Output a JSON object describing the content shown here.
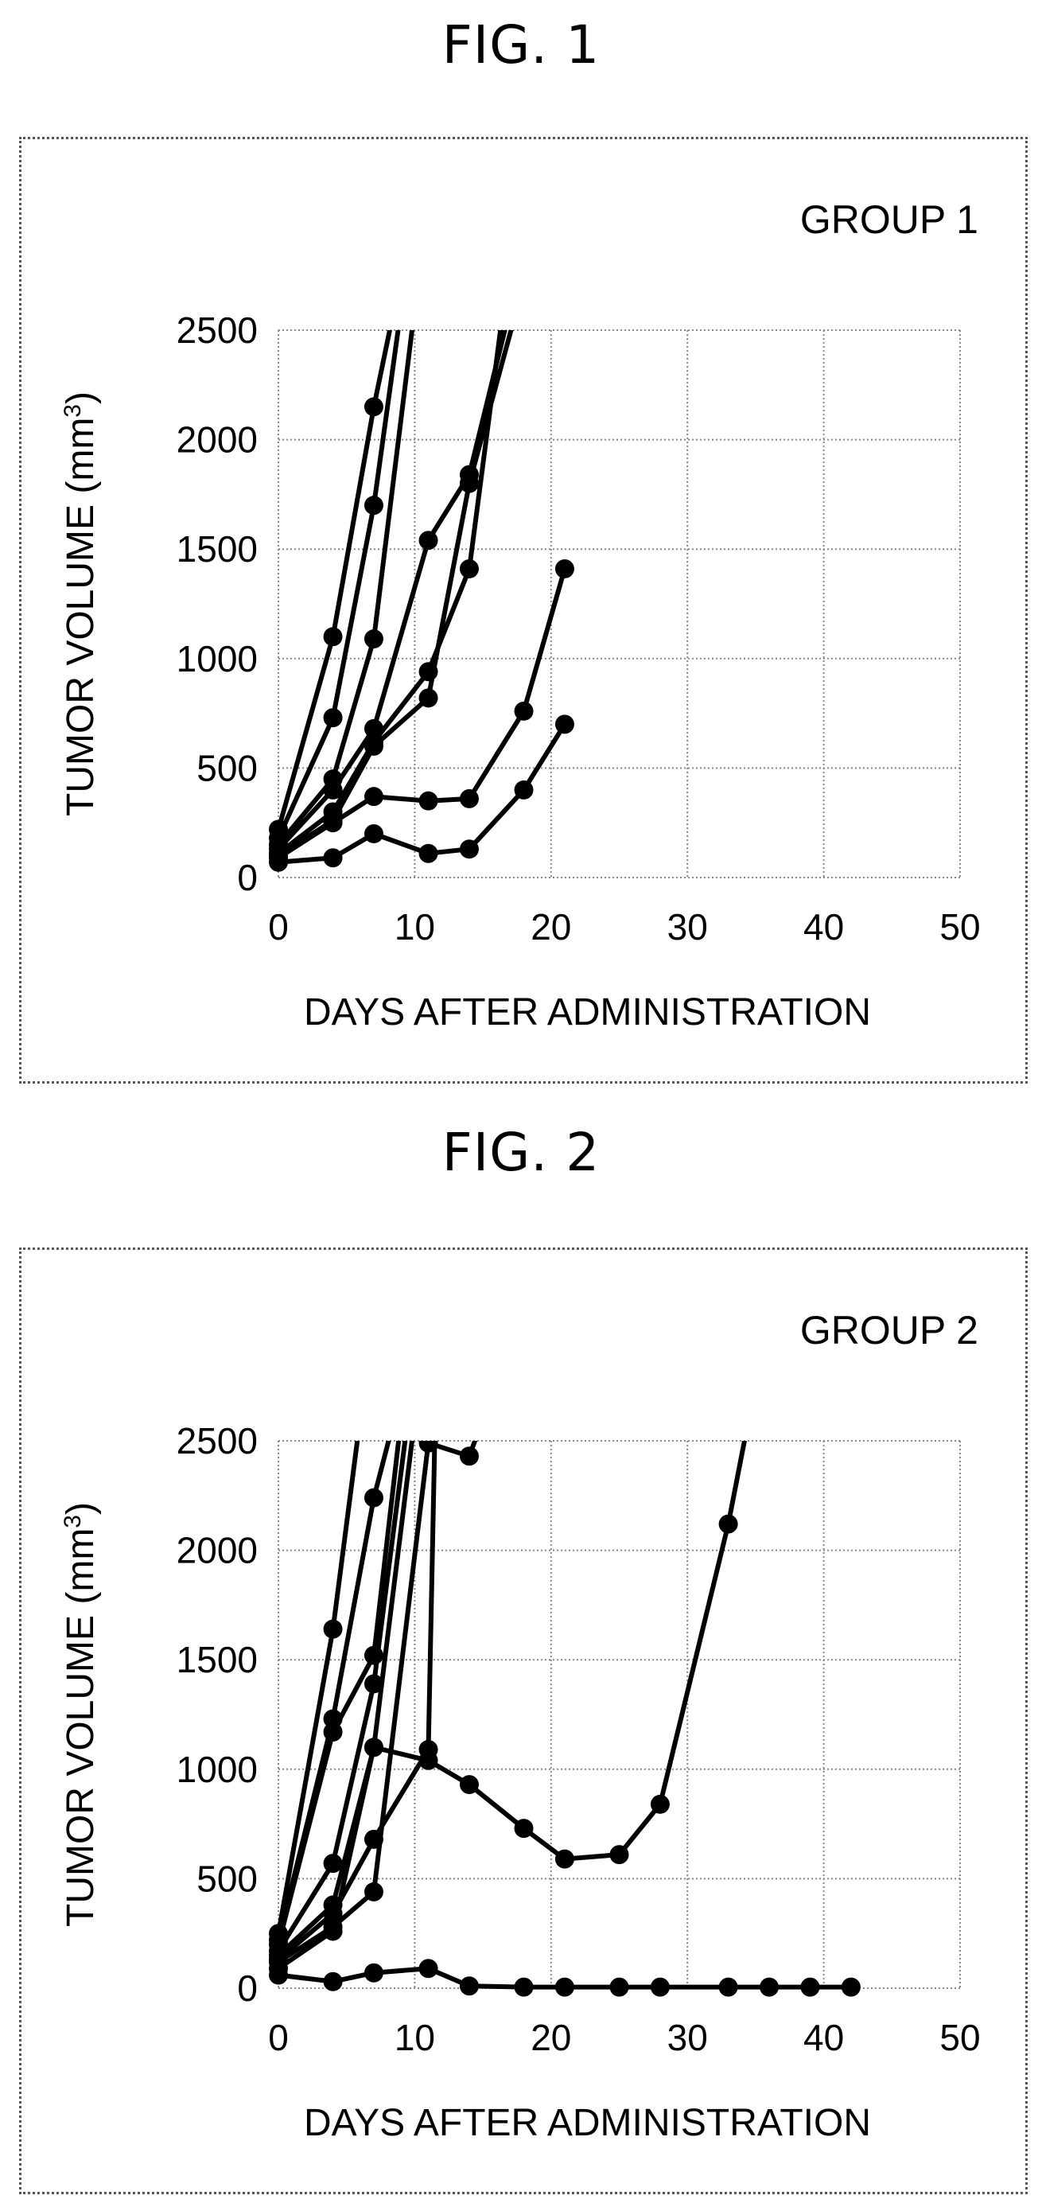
{
  "figures": [
    {
      "title": "FIG. 1"
    },
    {
      "title": "FIG. 2"
    }
  ],
  "chart_data": [
    {
      "type": "line",
      "title": "GROUP 1",
      "xlabel": "DAYS AFTER ADMINISTRATION",
      "ylabel": "TUMOR VOLUME (mm",
      "ylabel_sup": "3",
      "ylabel_close": ")",
      "xlim": [
        0,
        50
      ],
      "ylim": [
        0,
        2500
      ],
      "xticks": [
        0,
        10,
        20,
        30,
        40,
        50
      ],
      "yticks": [
        0,
        500,
        1000,
        1500,
        2000,
        2500
      ],
      "grid": true,
      "series": [
        {
          "x": [
            0,
            4,
            7,
            8.5
          ],
          "y": [
            220,
            1100,
            2150,
            2600
          ]
        },
        {
          "x": [
            0,
            4,
            7,
            9
          ],
          "y": [
            180,
            730,
            1700,
            2600
          ]
        },
        {
          "x": [
            0,
            4,
            7,
            10
          ],
          "y": [
            150,
            450,
            1090,
            2600
          ]
        },
        {
          "x": [
            0,
            4,
            7,
            11,
            14,
            17
          ],
          "y": [
            130,
            400,
            680,
            1540,
            1840,
            2600
          ]
        },
        {
          "x": [
            0,
            4,
            7,
            11,
            14,
            16.5
          ],
          "y": [
            110,
            300,
            620,
            940,
            1410,
            2600
          ]
        },
        {
          "x": [
            0,
            4,
            7,
            11,
            14,
            17.5
          ],
          "y": [
            100,
            260,
            600,
            820,
            1800,
            2600
          ]
        },
        {
          "x": [
            0,
            4,
            7,
            11,
            14,
            18,
            21
          ],
          "y": [
            90,
            250,
            370,
            350,
            360,
            760,
            1410
          ]
        },
        {
          "x": [
            0,
            4,
            7,
            11,
            14,
            18,
            21
          ],
          "y": [
            70,
            90,
            200,
            110,
            130,
            400,
            700
          ]
        }
      ]
    },
    {
      "type": "line",
      "title": "GROUP 2",
      "xlabel": "DAYS AFTER ADMINISTRATION",
      "ylabel": "TUMOR VOLUME (mm",
      "ylabel_sup": "3",
      "ylabel_close": ")",
      "xlim": [
        0,
        50
      ],
      "ylim": [
        0,
        2500
      ],
      "xticks": [
        0,
        10,
        20,
        30,
        40,
        50
      ],
      "yticks": [
        0,
        500,
        1000,
        1500,
        2000,
        2500
      ],
      "grid": true,
      "series": [
        {
          "x": [
            0,
            4,
            6
          ],
          "y": [
            250,
            1640,
            2600
          ]
        },
        {
          "x": [
            0,
            4,
            7,
            8.5
          ],
          "y": [
            220,
            1230,
            2240,
            2600
          ]
        },
        {
          "x": [
            0,
            4,
            7,
            9
          ],
          "y": [
            200,
            1170,
            1520,
            2600
          ]
        },
        {
          "x": [
            0,
            4,
            7,
            9.5
          ],
          "y": [
            170,
            570,
            1390,
            2600
          ]
        },
        {
          "x": [
            0,
            4,
            7,
            10
          ],
          "y": [
            150,
            380,
            1100,
            2600
          ]
        },
        {
          "x": [
            0,
            4,
            7,
            11,
            11.5
          ],
          "y": [
            130,
            340,
            680,
            1090,
            2600
          ]
        },
        {
          "x": [
            0,
            4,
            7,
            11,
            14,
            15
          ],
          "y": [
            120,
            280,
            440,
            2490,
            2430,
            2600
          ]
        },
        {
          "x": [
            0,
            4,
            7,
            11,
            14,
            18,
            21,
            25,
            28,
            33,
            34.5
          ],
          "y": [
            90,
            260,
            1100,
            1040,
            930,
            730,
            590,
            610,
            840,
            2120,
            2600
          ]
        },
        {
          "x": [
            0,
            4,
            7,
            11,
            14,
            18,
            21,
            25,
            28,
            33,
            36,
            39,
            42
          ],
          "y": [
            60,
            30,
            70,
            90,
            10,
            5,
            5,
            5,
            5,
            5,
            5,
            5,
            5
          ]
        }
      ]
    }
  ]
}
